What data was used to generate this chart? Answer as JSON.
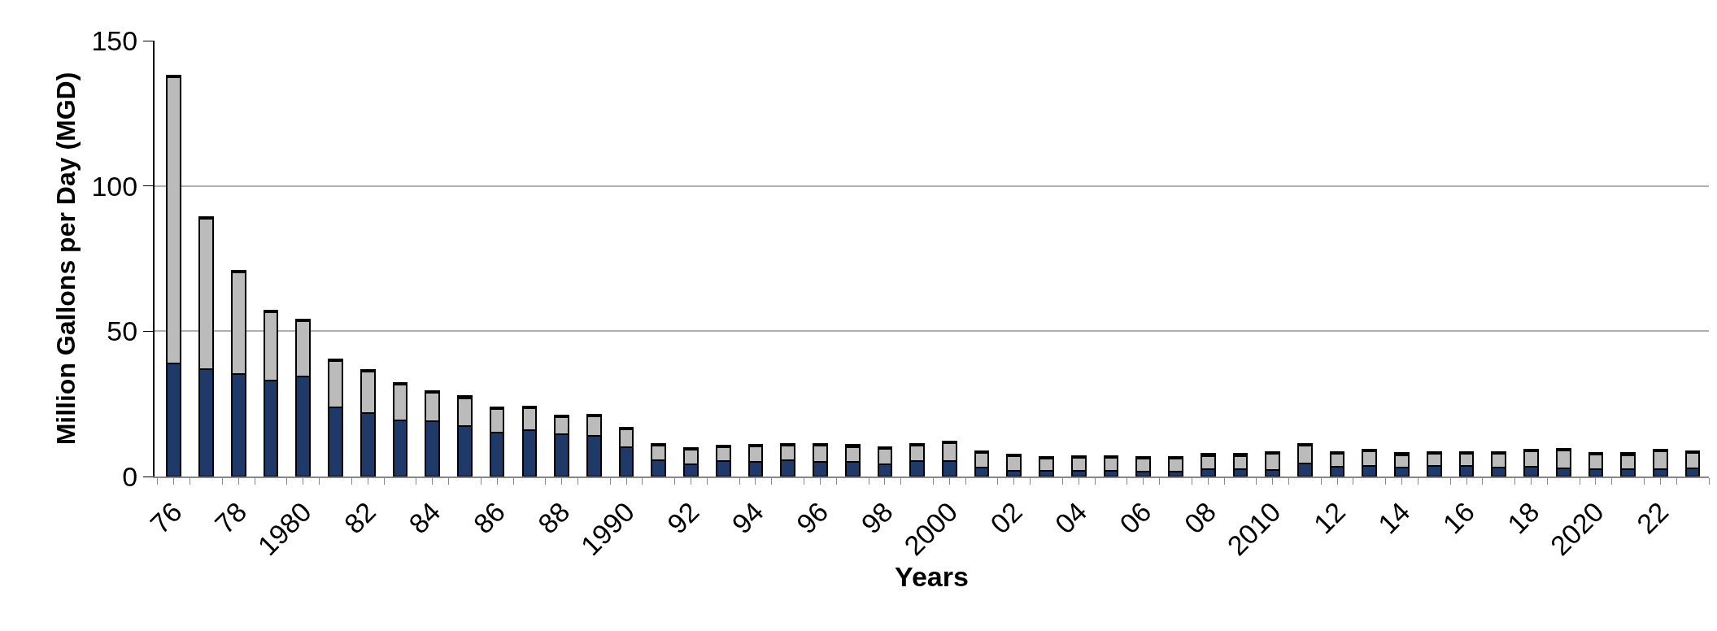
{
  "chart_data": {
    "type": "bar",
    "stacked": true,
    "xlabel": "Years",
    "ylabel": "Million Gallons per Day (MGD)",
    "categories": [
      "76",
      null,
      "78",
      null,
      "1980",
      null,
      "82",
      null,
      "84",
      null,
      "86",
      null,
      "88",
      null,
      "1990",
      null,
      "92",
      null,
      "94",
      null,
      "96",
      null,
      "98",
      null,
      "2000",
      null,
      "02",
      null,
      "04",
      null,
      "06",
      null,
      "08",
      null,
      "2010",
      null,
      "12",
      null,
      "14",
      null,
      "16",
      null,
      "18",
      null,
      "2020",
      null,
      "22",
      null
    ],
    "series": [
      {
        "color": "#1f3a68",
        "values": [
          39.0,
          37.0,
          35.4,
          33.1,
          34.4,
          23.8,
          21.8,
          19.4,
          18.9,
          17.3,
          15.0,
          15.9,
          14.5,
          14.1,
          10.2,
          5.5,
          4.3,
          5.4,
          5.1,
          5.6,
          5.0,
          5.0,
          4.3,
          5.3,
          5.3,
          3.2,
          2.1,
          2.0,
          2.0,
          2.1,
          1.6,
          1.6,
          2.5,
          2.5,
          2.3,
          4.4,
          3.3,
          3.6,
          3.1,
          3.5,
          3.5,
          3.1,
          3.3,
          2.9,
          2.4,
          2.4,
          2.5,
          2.7
        ]
      },
      {
        "color": "#bbbbbb",
        "values": [
          98.4,
          51.6,
          34.8,
          23.4,
          19.0,
          16.0,
          14.4,
          12.1,
          9.8,
          9.7,
          8.3,
          7.5,
          5.9,
          6.7,
          6.0,
          5.2,
          4.9,
          4.7,
          5.2,
          5.1,
          5.7,
          5.2,
          5.3,
          5.4,
          6.2,
          5.0,
          4.8,
          4.1,
          4.5,
          4.4,
          4.5,
          4.6,
          4.6,
          4.6,
          5.4,
          6.3,
          4.5,
          5.1,
          4.3,
          4.2,
          4.4,
          4.6,
          5.4,
          6.1,
          5.1,
          5.0,
          6.2,
          5.5
        ]
      },
      {
        "color": "#000000",
        "values": [
          0.6,
          0.6,
          0.6,
          0.6,
          0.6,
          0.6,
          0.6,
          0.6,
          0.6,
          0.6,
          0.6,
          0.6,
          0.6,
          0.6,
          0.6,
          0.6,
          0.6,
          0.6,
          0.6,
          0.6,
          0.6,
          0.6,
          0.6,
          0.6,
          0.6,
          0.6,
          0.6,
          0.6,
          0.6,
          0.6,
          0.6,
          0.6,
          0.6,
          0.6,
          0.6,
          0.6,
          0.6,
          0.6,
          0.6,
          0.6,
          0.6,
          0.6,
          0.6,
          0.6,
          0.6,
          0.6,
          0.6,
          0.6
        ]
      }
    ],
    "ylim": [
      0,
      150
    ],
    "yticks": [
      0,
      50,
      100,
      150
    ],
    "grid": "y"
  }
}
